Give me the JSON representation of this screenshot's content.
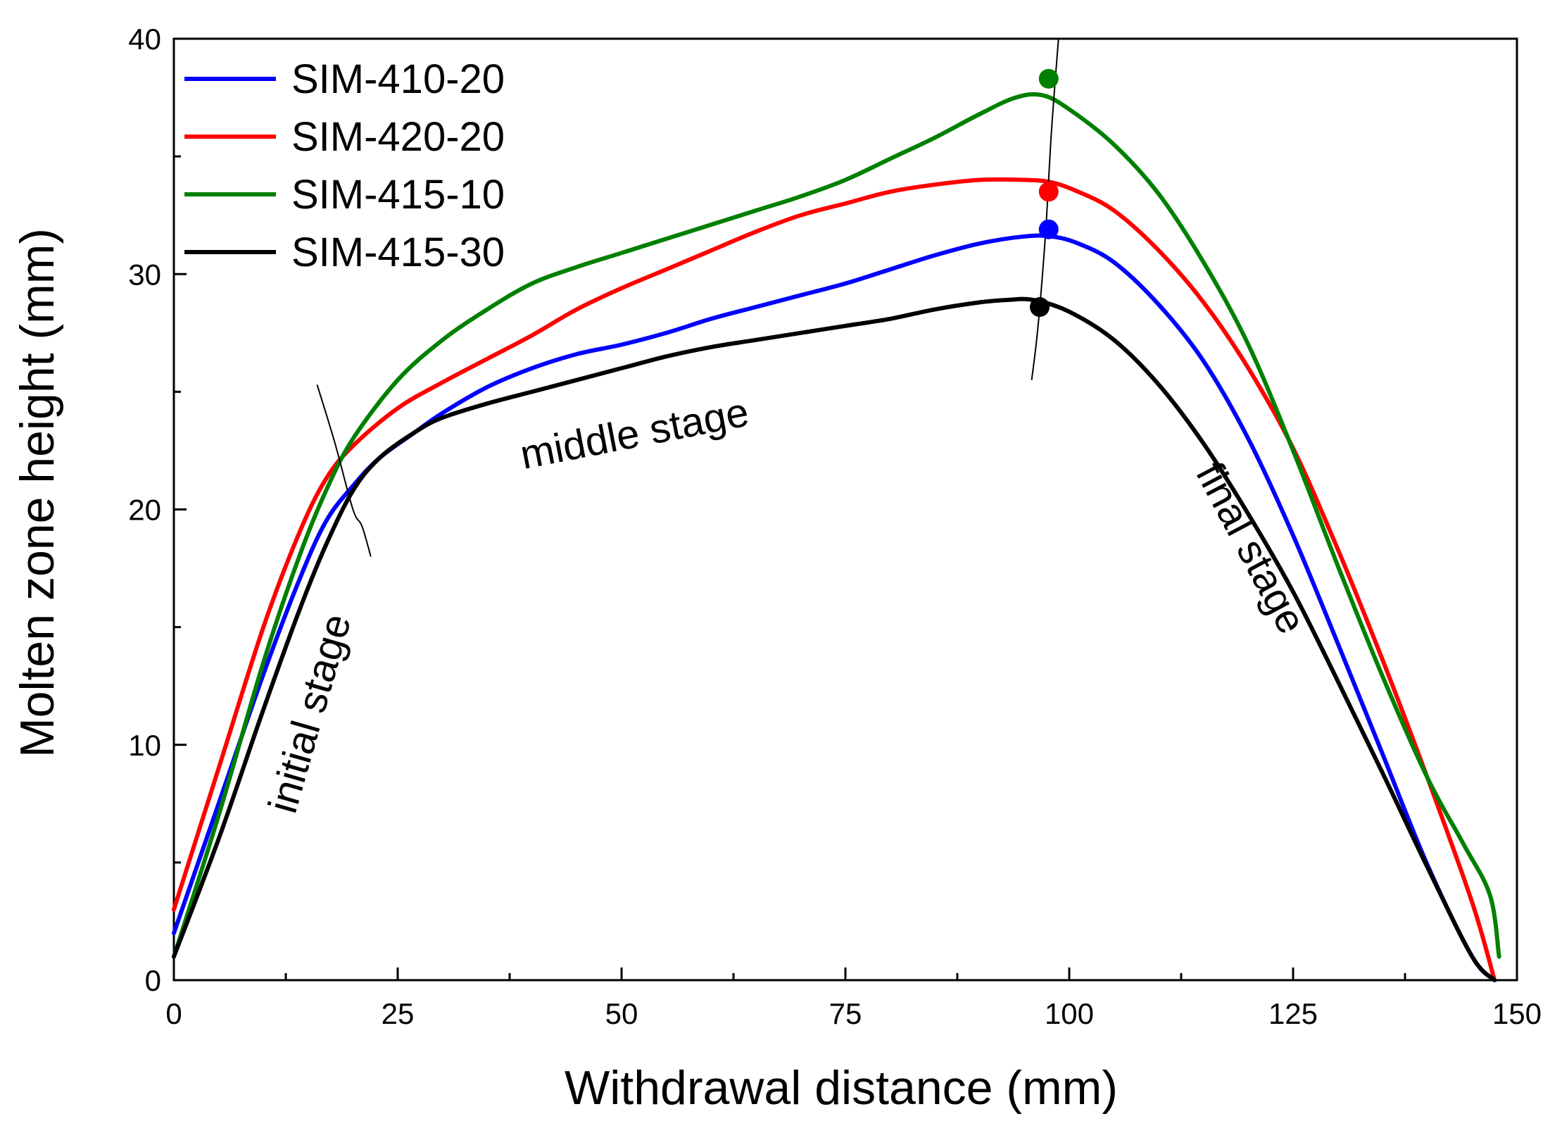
{
  "chart_data": {
    "type": "line",
    "title": "",
    "xlabel": "Withdrawal distance (mm)",
    "ylabel": "Molten zone height (mm)",
    "xlim": [
      0,
      150
    ],
    "ylim": [
      0,
      40
    ],
    "xticks": [
      0,
      25,
      50,
      75,
      100,
      125,
      150
    ],
    "yticks": [
      0,
      10,
      20,
      30,
      40
    ],
    "xtick_labels": [
      "0",
      "25",
      "50",
      "75",
      "100",
      "125",
      "150"
    ],
    "ytick_labels": [
      "0",
      "10",
      "20",
      "30",
      "40"
    ],
    "x_minor_step": 12.5,
    "y_minor_step": 5,
    "grid": false,
    "legend_position": "top-left",
    "series": [
      {
        "name": "SIM-410-20",
        "color": "#0000ff",
        "x": [
          0,
          5,
          10,
          14,
          17,
          20,
          23,
          27,
          30,
          35,
          40,
          45,
          50,
          55,
          60,
          65,
          70,
          75,
          80,
          85,
          90,
          95,
          98,
          101,
          105,
          110,
          115,
          120,
          125,
          130,
          135,
          140,
          145,
          147.5
        ],
        "y": [
          2.0,
          7.5,
          13.0,
          17.0,
          19.5,
          21.0,
          22.2,
          23.3,
          24.1,
          25.2,
          26.0,
          26.6,
          27.0,
          27.5,
          28.1,
          28.6,
          29.1,
          29.6,
          30.2,
          30.8,
          31.3,
          31.6,
          31.6,
          31.3,
          30.5,
          28.7,
          26.3,
          23.0,
          18.9,
          14.3,
          9.6,
          4.9,
          1.0,
          0.0
        ]
      },
      {
        "name": "SIM-420-20",
        "color": "#ff0000",
        "x": [
          0,
          5,
          10,
          14,
          17,
          20,
          25,
          30,
          35,
          40,
          45,
          50,
          55,
          60,
          65,
          70,
          75,
          80,
          85,
          90,
          95,
          98,
          101,
          105,
          110,
          115,
          120,
          125,
          130,
          135,
          140,
          145,
          147.5
        ],
        "y": [
          3.0,
          9.0,
          15.0,
          19.0,
          21.3,
          22.7,
          24.3,
          25.4,
          26.4,
          27.4,
          28.5,
          29.4,
          30.2,
          31.0,
          31.8,
          32.5,
          33.0,
          33.5,
          33.8,
          34.0,
          34.0,
          33.9,
          33.5,
          32.7,
          31.0,
          28.8,
          26.0,
          22.6,
          18.3,
          13.6,
          8.6,
          3.3,
          0.0
        ]
      },
      {
        "name": "SIM-415-10",
        "color": "#008000",
        "x": [
          0,
          5,
          10,
          14,
          17,
          20,
          25,
          30,
          35,
          40,
          45,
          50,
          55,
          60,
          65,
          70,
          75,
          80,
          85,
          90,
          94,
          97,
          100,
          105,
          110,
          115,
          120,
          125,
          130,
          135,
          140,
          144,
          147,
          148
        ],
        "y": [
          1.0,
          7.0,
          13.5,
          18.0,
          20.8,
          23.0,
          25.5,
          27.2,
          28.5,
          29.6,
          30.3,
          30.9,
          31.5,
          32.1,
          32.7,
          33.3,
          34.0,
          34.9,
          35.8,
          36.8,
          37.5,
          37.6,
          37.0,
          35.5,
          33.4,
          30.5,
          27.0,
          22.5,
          17.6,
          12.9,
          8.6,
          5.8,
          3.6,
          1.0
        ]
      },
      {
        "name": "SIM-415-30",
        "color": "#000000",
        "x": [
          0,
          5,
          10,
          14,
          17,
          20,
          23,
          27,
          30,
          35,
          40,
          45,
          50,
          55,
          60,
          65,
          70,
          75,
          80,
          85,
          90,
          93,
          96,
          100,
          105,
          110,
          115,
          120,
          125,
          130,
          135,
          140,
          145,
          147.5
        ],
        "y": [
          1.0,
          6.0,
          11.5,
          15.7,
          18.5,
          20.8,
          22.2,
          23.3,
          23.9,
          24.5,
          25.0,
          25.5,
          26.0,
          26.5,
          26.9,
          27.2,
          27.5,
          27.8,
          28.1,
          28.5,
          28.8,
          28.9,
          28.9,
          28.4,
          27.2,
          25.3,
          22.8,
          19.8,
          16.5,
          12.7,
          8.8,
          4.8,
          1.0,
          0.0
        ]
      }
    ],
    "markers": [
      {
        "series": "SIM-415-10",
        "color": "#008000",
        "x": 97.7,
        "y": 38.3
      },
      {
        "series": "SIM-420-20",
        "color": "#ff0000",
        "x": 97.7,
        "y": 33.5
      },
      {
        "series": "SIM-410-20",
        "color": "#0000ff",
        "x": 97.7,
        "y": 31.9
      },
      {
        "series": "SIM-415-30",
        "color": "#000000",
        "x": 96.7,
        "y": 28.6
      }
    ],
    "stage_boundaries": [
      {
        "name": "initial-middle-boundary",
        "x": [
          16.0,
          18.0,
          20.0,
          21.0,
          22.0
        ],
        "y": [
          25.3,
          22.8,
          20.0,
          19.3,
          18.0
        ]
      },
      {
        "name": "middle-final-boundary",
        "x": [
          98.8,
          98.0,
          97.4,
          96.8,
          96.3,
          95.8
        ],
        "y": [
          40.0,
          36.0,
          32.0,
          29.0,
          27.0,
          25.5
        ]
      }
    ],
    "annotations": [
      {
        "text": "initial stage",
        "x": 15.5,
        "y": 11.3,
        "rotation": -74
      },
      {
        "text": "middle stage",
        "x": 51.5,
        "y": 23.1,
        "rotation": -11
      },
      {
        "text": "final stage",
        "x": 120.0,
        "y": 18.3,
        "rotation": 62
      }
    ]
  }
}
